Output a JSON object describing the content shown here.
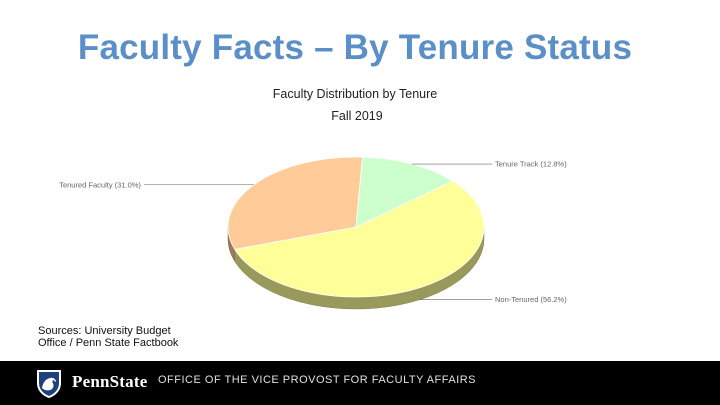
{
  "slide": {
    "title": "Faculty Facts – By Tenure Status",
    "sources": "Sources: University Budget Office / Penn State Factbook"
  },
  "footer": {
    "brand": "PennState",
    "office": "OFFICE OF THE VICE PROVOST FOR FACULTY AFFAIRS",
    "logo_icon": "nittany-lion-shield-icon",
    "background": "#000000"
  },
  "chart_data": {
    "type": "pie",
    "style": "3d",
    "title": "Faculty Distribution by Tenure",
    "subtitle": "Fall 2019",
    "categories": [
      "Non-Tenured (56.2%)",
      "Tenured Faculty (31.0%)",
      "Tenure Track (12.8%)"
    ],
    "values": [
      56.2,
      31.0,
      12.8
    ],
    "colors": [
      "#ffff99",
      "#ffcc99",
      "#ccffcc"
    ],
    "legend": "none"
  }
}
